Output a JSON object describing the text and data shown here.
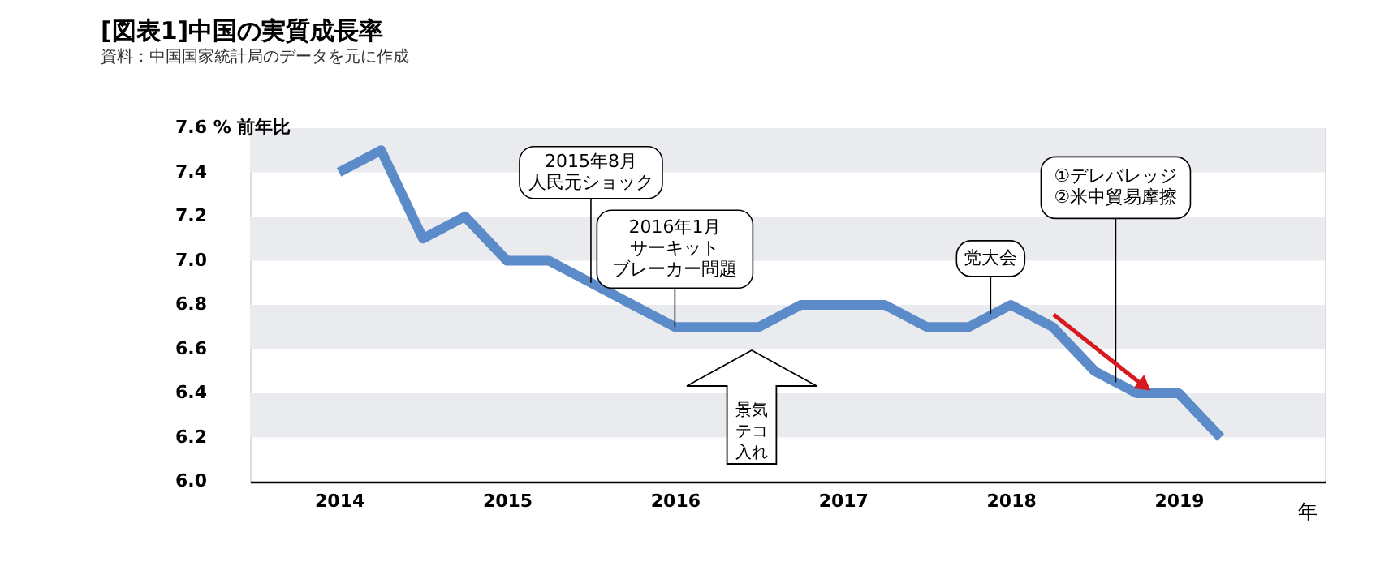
{
  "chart_data": {
    "type": "line",
    "title": "[図表1]中国の実質成長率",
    "subtitle": "資料：中国国家統計局のデータを元に作成",
    "xlabel": "年",
    "x": [
      2014,
      2014.25,
      2014.5,
      2014.75,
      2015,
      2015.25,
      2015.5,
      2015.75,
      2016,
      2016.25,
      2016.5,
      2016.75,
      2017,
      2017.25,
      2017.5,
      2017.75,
      2018,
      2018.25,
      2018.5,
      2018.75,
      2019,
      2019.25
    ],
    "series": [
      {
        "color": "#5b8bc9",
        "values": [
          7.4,
          7.5,
          7.1,
          7.2,
          7.0,
          7.0,
          6.9,
          6.8,
          6.7,
          6.7,
          6.7,
          6.8,
          6.8,
          6.8,
          6.7,
          6.7,
          6.8,
          6.7,
          6.5,
          6.4,
          6.4,
          6.2
        ]
      }
    ],
    "xlim": [
      2013.47,
      2019.87
    ],
    "xticks": [
      2014,
      2015,
      2016,
      2017,
      2018,
      2019
    ],
    "ylim": [
      6.0,
      7.6
    ],
    "yticks": [
      {
        "value": 6,
        "label": "6.0"
      },
      6.2,
      6.4,
      6.6,
      6.8,
      {
        "value": 7,
        "label": "7.0"
      },
      7.2,
      7.4,
      {
        "value": 7.6,
        "label": "7.6 % 前年比"
      }
    ],
    "bands": [
      {
        "axis": "y",
        "from": 7.4,
        "to": 7.6,
        "color": "#e9ebef"
      },
      {
        "axis": "y",
        "from": 7.0,
        "to": 7.2,
        "color": "#e9ebef"
      },
      {
        "axis": "y",
        "from": 6.6,
        "to": 6.8,
        "color": "#e9ebef"
      },
      {
        "axis": "y",
        "from": 6.2,
        "to": 6.4,
        "color": "#e9ebef"
      }
    ],
    "annotations": [
      {
        "text": "2015年8月人民元ショック",
        "x": 2015.5,
        "y": 6.9
      },
      {
        "text": "2016年1月サーキットブレーカー問題",
        "x": 2016,
        "y": 6.7
      },
      "景気テコ入れ",
      {
        "text": "党大会",
        "x": 2017.88,
        "y": 6.76
      },
      {
        "text": "①デレバレッジ②米中貿易摩擦",
        "x": 2018.625,
        "y": 6.45
      }
    ],
    "marker": "none",
    "line_style": "solid"
  }
}
